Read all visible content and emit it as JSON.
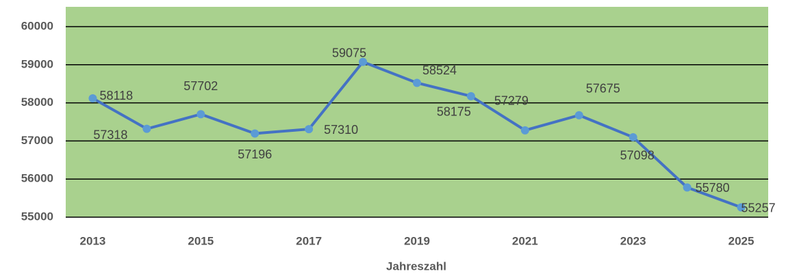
{
  "chart_data": {
    "type": "line",
    "x_label": "Jahreszahl",
    "categories": [
      "2013",
      null,
      "2015",
      null,
      "2017",
      null,
      "2019",
      null,
      "2021",
      null,
      "2023",
      null,
      "2025"
    ],
    "series": [
      {
        "name": "Jahreszahl",
        "color": "#4472c4",
        "marker_color": "#5b9bd5",
        "values": [
          58118,
          57318,
          57702,
          57196,
          57310,
          59075,
          58524,
          58175,
          57279,
          57675,
          57098,
          55780,
          55257
        ]
      }
    ],
    "ylim": [
      55000,
      60520
    ],
    "yticks": [
      55000,
      56000,
      57000,
      58000,
      59000,
      60000
    ],
    "grid": true,
    "plot_background": "#a9d18e"
  }
}
